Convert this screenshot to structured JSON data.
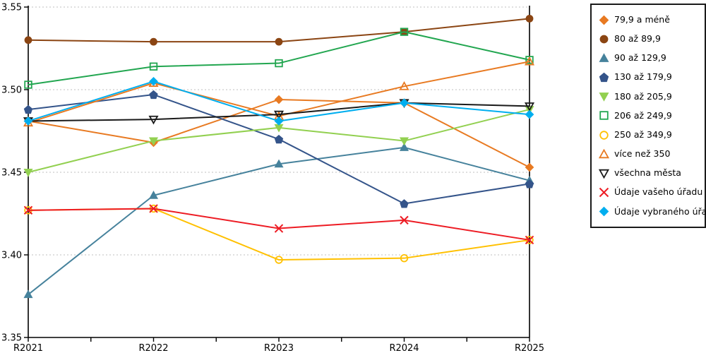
{
  "chart_data": {
    "type": "line",
    "title": "",
    "xlabel": "",
    "ylabel": "",
    "categories": [
      "R2021",
      "R2022",
      "R2023",
      "R2024",
      "R2025"
    ],
    "ylim": [
      3.35,
      3.55
    ],
    "y_ticks": [
      3.35,
      3.4,
      3.45,
      3.5,
      3.55
    ],
    "y_tick_labels": [
      "3.35",
      "3.40",
      "3.45",
      "3.50",
      "3.55"
    ],
    "grid": "horizontal-dotted",
    "grid_color": "#bfbfbf",
    "axis_color": "#000000",
    "legend_position": "right",
    "series": [
      {
        "name": "79,9 a méně",
        "color": "#e87a22",
        "marker": "diamond",
        "filled": true,
        "values": [
          3.481,
          3.468,
          3.494,
          3.492,
          3.453
        ]
      },
      {
        "name": "80 až 89,9",
        "color": "#8b4513",
        "marker": "circle",
        "filled": true,
        "values": [
          3.53,
          3.529,
          3.529,
          3.535,
          3.543
        ]
      },
      {
        "name": "90 až 129,9",
        "color": "#46829c",
        "marker": "triangle-up",
        "filled": true,
        "values": [
          3.376,
          3.436,
          3.455,
          3.465,
          3.445
        ]
      },
      {
        "name": "130 až 179,9",
        "color": "#34548a",
        "marker": "pentagon",
        "filled": true,
        "values": [
          3.488,
          3.497,
          3.47,
          3.431,
          3.443
        ]
      },
      {
        "name": "180 až 205,9",
        "color": "#92d050",
        "marker": "triangle-down",
        "filled": true,
        "values": [
          3.45,
          3.469,
          3.477,
          3.469,
          3.488
        ]
      },
      {
        "name": "206 až 249,9",
        "color": "#22a650",
        "marker": "square",
        "filled": false,
        "values": [
          3.503,
          3.514,
          3.516,
          3.535,
          3.518
        ]
      },
      {
        "name": "250 až 349,9",
        "color": "#ffc000",
        "marker": "circle",
        "filled": false,
        "values": [
          3.427,
          3.428,
          3.397,
          3.398,
          3.409
        ]
      },
      {
        "name": "více než 350",
        "color": "#e87a22",
        "marker": "triangle-up",
        "filled": false,
        "values": [
          3.48,
          3.504,
          3.484,
          3.502,
          3.517
        ]
      },
      {
        "name": "všechna města",
        "color": "#1a1a1a",
        "marker": "triangle-down",
        "filled": false,
        "values": [
          3.481,
          3.482,
          3.485,
          3.492,
          3.49
        ]
      },
      {
        "name": "Údaje vašeho úřadu",
        "color": "#ed1c24",
        "marker": "x",
        "filled": false,
        "values": [
          3.427,
          3.428,
          3.416,
          3.421,
          3.409
        ]
      },
      {
        "name": "Údaje vybraného úřadu",
        "color": "#00aeef",
        "marker": "diamond",
        "filled": true,
        "values": [
          3.481,
          3.505,
          3.481,
          3.492,
          3.485
        ]
      }
    ]
  }
}
